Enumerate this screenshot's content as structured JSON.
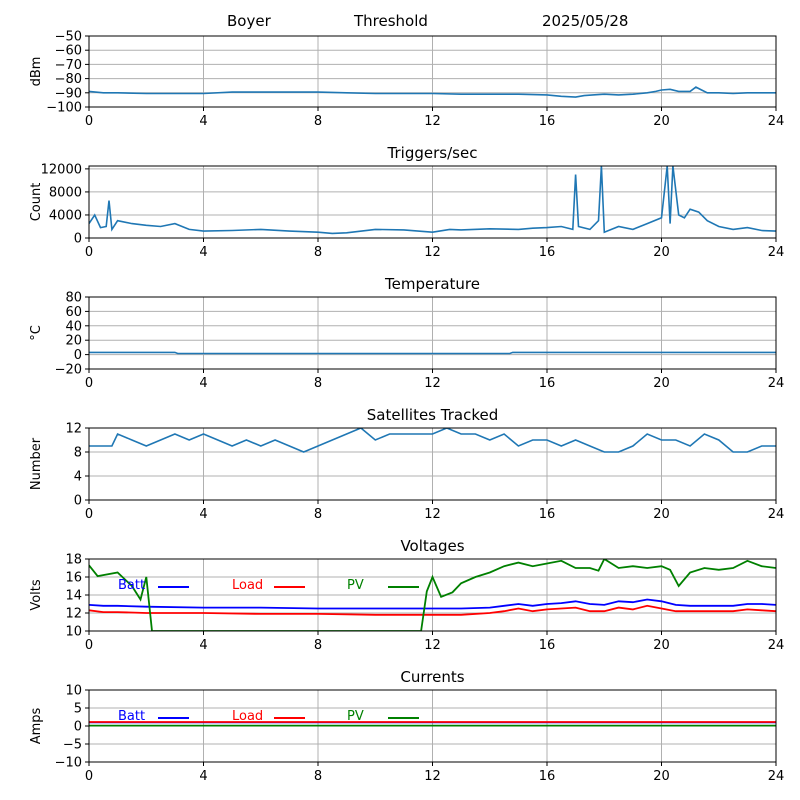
{
  "header": {
    "station": "Boyer",
    "mode": "Threshold",
    "date": "2025/05/28"
  },
  "colors": {
    "series": "#1f77b4",
    "batt": "#0000ff",
    "load": "#ff0000",
    "pv": "#008000",
    "grid": "#b0b0b0"
  },
  "chart_data": [
    {
      "type": "line",
      "title": "",
      "xlabel": "",
      "ylabel": "dBm",
      "xlim": [
        0,
        24
      ],
      "ylim": [
        -100,
        -50
      ],
      "xticks": [
        "0",
        "4",
        "8",
        "12",
        "16",
        "20",
        "24"
      ],
      "yticks": [
        "−100",
        "−90",
        "−80",
        "−70",
        "−60",
        "−50"
      ],
      "grid": true,
      "series": [
        {
          "x": [
            0,
            0.5,
            1,
            2,
            3,
            4,
            5,
            6,
            7,
            8,
            9,
            10,
            11,
            12,
            13,
            14,
            15,
            16,
            16.5,
            17,
            17.3,
            17.6,
            18,
            18.5,
            19,
            19.5,
            19.8,
            20,
            20.3,
            20.6,
            21,
            21.2,
            21.4,
            21.6,
            22,
            22.5,
            23,
            23.5,
            24
          ],
          "y": [
            -89,
            -90,
            -90,
            -90.5,
            -90.5,
            -90.5,
            -89.5,
            -89.5,
            -89.5,
            -89.5,
            -90,
            -90.5,
            -90.5,
            -90.5,
            -91,
            -91,
            -91,
            -91.5,
            -92.5,
            -93,
            -92,
            -91.5,
            -91,
            -91.5,
            -91,
            -90,
            -89,
            -88,
            -87.5,
            -89,
            -89,
            -86,
            -88,
            -90,
            -90,
            -90.5,
            -90,
            -90,
            -90
          ]
        }
      ]
    },
    {
      "type": "line",
      "title": "Triggers/sec",
      "xlabel": "",
      "ylabel": "Count",
      "xlim": [
        0,
        24
      ],
      "ylim": [
        0,
        12500
      ],
      "xticks": [
        "0",
        "4",
        "8",
        "12",
        "16",
        "20",
        "24"
      ],
      "yticks": [
        "0",
        "4000",
        "8000",
        "12000"
      ],
      "grid": true,
      "series": [
        {
          "x": [
            0,
            0.2,
            0.4,
            0.6,
            0.7,
            0.8,
            1,
            1.5,
            2,
            2.5,
            3,
            3.5,
            4,
            5,
            6,
            7,
            8,
            8.5,
            9,
            10,
            11,
            11.5,
            12,
            12.6,
            13,
            14,
            15,
            15.5,
            16,
            16.5,
            16.9,
            17,
            17.1,
            17.5,
            17.8,
            17.9,
            18,
            18.5,
            19,
            19.5,
            20,
            20.2,
            20.3,
            20.4,
            20.6,
            20.8,
            21,
            21.3,
            21.6,
            22,
            22.5,
            23,
            23.5,
            24
          ],
          "y": [
            2500,
            4000,
            1800,
            2000,
            6500,
            1500,
            3000,
            2500,
            2200,
            2000,
            2500,
            1500,
            1200,
            1300,
            1500,
            1200,
            1000,
            800,
            900,
            1500,
            1400,
            1200,
            1000,
            1500,
            1400,
            1600,
            1500,
            1700,
            1800,
            2000,
            1500,
            11000,
            2000,
            1500,
            3000,
            12500,
            1000,
            2000,
            1500,
            2500,
            3500,
            12500,
            2500,
            12500,
            4000,
            3500,
            5000,
            4500,
            3000,
            2000,
            1500,
            1800,
            1300,
            1200
          ]
        }
      ]
    },
    {
      "type": "line",
      "title": "Temperature",
      "xlabel": "",
      "ylabel": "°C",
      "xlim": [
        0,
        24
      ],
      "ylim": [
        -20,
        80
      ],
      "xticks": [
        "0",
        "4",
        "8",
        "12",
        "16",
        "20",
        "24"
      ],
      "yticks": [
        "−20",
        "0",
        "20",
        "40",
        "60",
        "80"
      ],
      "grid": true,
      "series": [
        {
          "x": [
            0,
            3,
            3.1,
            14.7,
            14.8,
            24
          ],
          "y": [
            3,
            3,
            1.5,
            1.5,
            3,
            3
          ]
        }
      ]
    },
    {
      "type": "line",
      "title": "Satellites Tracked",
      "xlabel": "",
      "ylabel": "Number",
      "xlim": [
        0,
        24
      ],
      "ylim": [
        0,
        12
      ],
      "xticks": [
        "0",
        "4",
        "8",
        "12",
        "16",
        "20",
        "24"
      ],
      "yticks": [
        "0",
        "4",
        "8",
        "12"
      ],
      "grid": true,
      "series": [
        {
          "x": [
            0,
            0.8,
            1,
            1.5,
            2,
            2.5,
            3,
            3.5,
            4,
            4.5,
            5,
            5.5,
            6,
            6.5,
            7,
            7.5,
            8,
            8.5,
            9,
            9.5,
            10,
            10.5,
            11,
            11.5,
            12,
            12.5,
            13,
            13.5,
            14,
            14.5,
            15,
            15.5,
            16,
            16.5,
            17,
            17.5,
            18,
            18.5,
            19,
            19.5,
            20,
            20.5,
            21,
            21.5,
            22,
            22.5,
            23,
            23.5,
            24
          ],
          "y": [
            9,
            9,
            11,
            10,
            9,
            10,
            11,
            10,
            11,
            10,
            9,
            10,
            9,
            10,
            9,
            8,
            9,
            10,
            11,
            12,
            10,
            11,
            11,
            11,
            11,
            12,
            11,
            11,
            10,
            11,
            9,
            10,
            10,
            9,
            10,
            9,
            8,
            8,
            9,
            11,
            10,
            10,
            9,
            11,
            10,
            8,
            8,
            9,
            9
          ]
        }
      ]
    },
    {
      "type": "line",
      "title": "Voltages",
      "xlabel": "",
      "ylabel": "Volts",
      "xlim": [
        0,
        24
      ],
      "ylim": [
        10,
        18
      ],
      "xticks": [
        "0",
        "4",
        "8",
        "12",
        "16",
        "20",
        "24"
      ],
      "yticks": [
        "10",
        "12",
        "14",
        "16",
        "18"
      ],
      "grid": true,
      "legend": [
        "Batt",
        "Load",
        "PV"
      ],
      "legend_position": "top-left",
      "series": [
        {
          "name": "Batt",
          "color": "batt",
          "x": [
            0,
            0.5,
            1,
            2,
            4,
            6,
            8,
            10,
            12,
            13,
            14,
            14.5,
            15,
            15.5,
            16,
            16.5,
            17,
            17.5,
            18,
            18.5,
            19,
            19.5,
            20,
            20.5,
            21,
            21.5,
            22,
            22.5,
            23,
            23.5,
            24
          ],
          "y": [
            12.9,
            12.8,
            12.8,
            12.7,
            12.6,
            12.6,
            12.5,
            12.5,
            12.5,
            12.5,
            12.6,
            12.8,
            13,
            12.8,
            13,
            13.1,
            13.3,
            13,
            12.9,
            13.3,
            13.2,
            13.5,
            13.3,
            12.9,
            12.8,
            12.8,
            12.8,
            12.8,
            13,
            13,
            12.9
          ]
        },
        {
          "name": "Load",
          "color": "load",
          "x": [
            0,
            0.5,
            1,
            2,
            4,
            6,
            8,
            10,
            12,
            13,
            14,
            14.5,
            15,
            15.5,
            16,
            16.5,
            17,
            17.5,
            18,
            18.5,
            19,
            19.5,
            20,
            20.5,
            21,
            21.5,
            22,
            22.5,
            23,
            23.5,
            24
          ],
          "y": [
            12.3,
            12.1,
            12.1,
            12,
            12,
            11.9,
            11.9,
            11.8,
            11.8,
            11.8,
            12,
            12.2,
            12.5,
            12.2,
            12.4,
            12.5,
            12.6,
            12.2,
            12.2,
            12.6,
            12.4,
            12.8,
            12.5,
            12.2,
            12.2,
            12.2,
            12.2,
            12.2,
            12.4,
            12.3,
            12.2
          ]
        },
        {
          "name": "PV",
          "color": "pv",
          "x": [
            0,
            0.3,
            1,
            1.5,
            1.8,
            2,
            2.2,
            11.6,
            11.8,
            12,
            12.3,
            12.7,
            13,
            13.5,
            14,
            14.5,
            15,
            15.5,
            16,
            16.5,
            17,
            17.5,
            17.8,
            18,
            18.5,
            19,
            19.5,
            20,
            20.3,
            20.6,
            21,
            21.5,
            22,
            22.5,
            23,
            23.5,
            24
          ],
          "y": [
            17.3,
            16.1,
            16.5,
            15,
            13.5,
            16,
            10,
            10,
            14.4,
            16,
            13.8,
            14.3,
            15.3,
            16,
            16.5,
            17.2,
            17.6,
            17.2,
            17.5,
            17.8,
            17,
            17,
            16.7,
            18,
            17,
            17.2,
            17,
            17.2,
            16.8,
            15,
            16.5,
            17,
            16.8,
            17,
            17.8,
            17.2,
            17
          ]
        }
      ]
    },
    {
      "type": "line",
      "title": "Currents",
      "xlabel": "",
      "ylabel": "Amps",
      "xlim": [
        0,
        24
      ],
      "ylim": [
        -10,
        10
      ],
      "xticks": [
        "0",
        "4",
        "8",
        "12",
        "16",
        "20",
        "24"
      ],
      "yticks": [
        "−10",
        "−5",
        "0",
        "5",
        "10"
      ],
      "grid": true,
      "legend": [
        "Batt",
        "Load",
        "PV"
      ],
      "legend_position": "top-left",
      "series": [
        {
          "name": "Batt",
          "color": "batt",
          "x": [
            0,
            24
          ],
          "y": [
            1,
            1
          ]
        },
        {
          "name": "Load",
          "color": "load",
          "x": [
            0,
            24
          ],
          "y": [
            1.1,
            1.1
          ]
        },
        {
          "name": "PV",
          "color": "pv",
          "x": [
            0,
            24
          ],
          "y": [
            0.1,
            0.1
          ]
        }
      ]
    }
  ]
}
